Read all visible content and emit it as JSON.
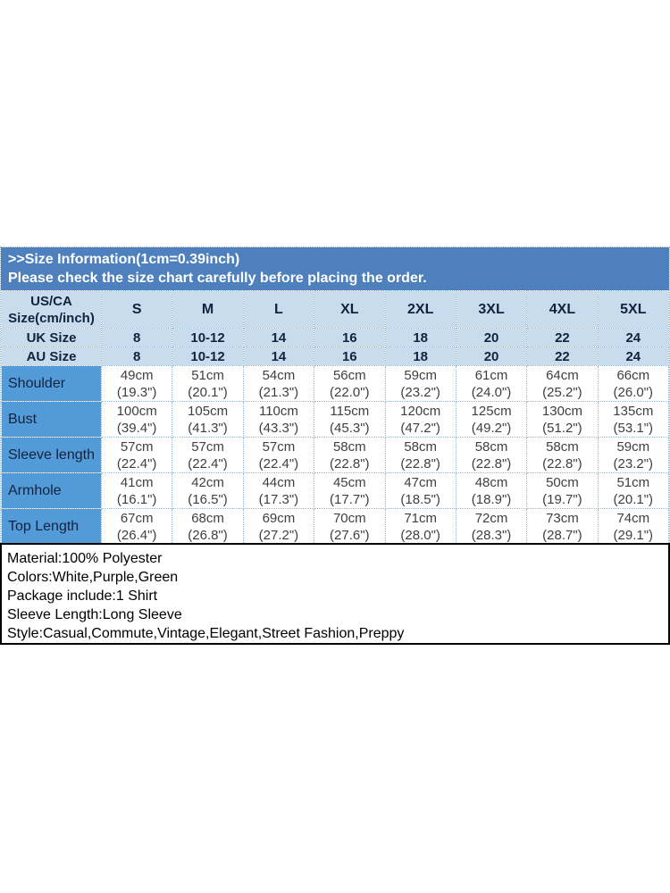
{
  "banner": {
    "title": ">>Size Information(1cm=0.39inch)",
    "subtitle": "Please check the size chart carefully before placing the order."
  },
  "table": {
    "corner": {
      "line1": "US/CA",
      "line2": "Size(cm/inch)"
    },
    "sizes": [
      "S",
      "M",
      "L",
      "XL",
      "2XL",
      "3XL",
      "4XL",
      "5XL"
    ],
    "size_rows": [
      {
        "label": "UK Size",
        "values": [
          "8",
          "10-12",
          "14",
          "16",
          "18",
          "20",
          "22",
          "24"
        ]
      },
      {
        "label": "AU Size",
        "values": [
          "8",
          "10-12",
          "14",
          "16",
          "18",
          "20",
          "22",
          "24"
        ]
      }
    ],
    "measurements": [
      {
        "label": "Shoulder",
        "cm": [
          "49cm",
          "51cm",
          "54cm",
          "56cm",
          "59cm",
          "61cm",
          "64cm",
          "66cm"
        ],
        "inch": [
          "(19.3\")",
          "(20.1\")",
          "(21.3\")",
          "(22.0\")",
          "(23.2\")",
          "(24.0\")",
          "(25.2\")",
          "(26.0\")"
        ]
      },
      {
        "label": "Bust",
        "cm": [
          "100cm",
          "105cm",
          "110cm",
          "115cm",
          "120cm",
          "125cm",
          "130cm",
          "135cm"
        ],
        "inch": [
          "(39.4\")",
          "(41.3\")",
          "(43.3\")",
          "(45.3\")",
          "(47.2\")",
          "(49.2\")",
          "(51.2\")",
          "(53.1\")"
        ]
      },
      {
        "label": "Sleeve length",
        "cm": [
          "57cm",
          "57cm",
          "57cm",
          "58cm",
          "58cm",
          "58cm",
          "58cm",
          "59cm"
        ],
        "inch": [
          "(22.4\")",
          "(22.4\")",
          "(22.4\")",
          "(22.8\")",
          "(22.8\")",
          "(22.8\")",
          "(22.8\")",
          "(23.2\")"
        ]
      },
      {
        "label": "Armhole",
        "cm": [
          "41cm",
          "42cm",
          "44cm",
          "45cm",
          "47cm",
          "48cm",
          "50cm",
          "51cm"
        ],
        "inch": [
          "(16.1\")",
          "(16.5\")",
          "(17.3\")",
          "(17.7\")",
          "(18.5\")",
          "(18.9\")",
          "(19.7\")",
          "(20.1\")"
        ]
      },
      {
        "label": "Top Length",
        "cm": [
          "67cm",
          "68cm",
          "69cm",
          "70cm",
          "71cm",
          "72cm",
          "73cm",
          "74cm"
        ],
        "inch": [
          "(26.4\")",
          "(26.8\")",
          "(27.2\")",
          "(27.6\")",
          "(28.0\")",
          "(28.3\")",
          "(28.7\")",
          "(29.1\")"
        ]
      }
    ]
  },
  "info": {
    "lines": [
      "Material:100% Polyester",
      "Colors:White,Purple,Green",
      "Package include:1 Shirt",
      "Sleeve Length:Long Sleeve",
      "Style:Casual,Commute,Vintage,Elegant,Street Fashion,Preppy"
    ]
  },
  "colors": {
    "banner_bg": "#4e80bd",
    "header_bg": "#c8dcee",
    "label_bg": "#539bd8",
    "grid": "#9bbad8",
    "header_text": "#12233d",
    "data_text": "#3f3f3f"
  }
}
